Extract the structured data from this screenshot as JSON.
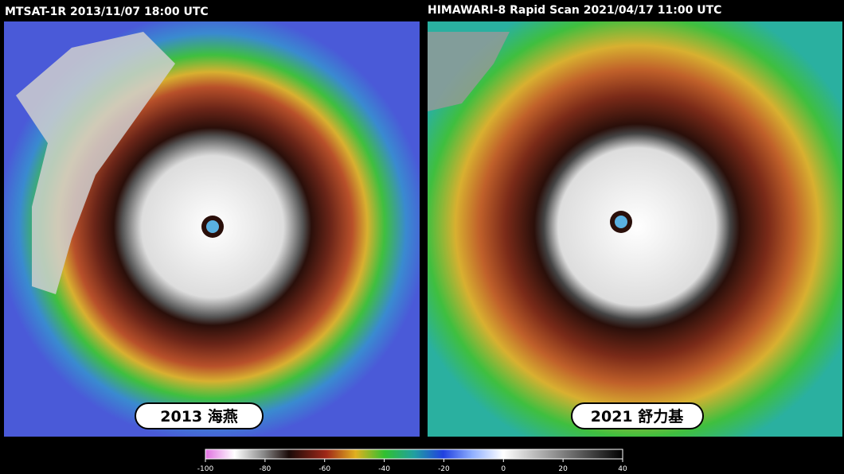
{
  "panels": [
    {
      "title": "MTSAT-1R 2013/11/07 18:00 UTC",
      "label": "2013 海燕"
    },
    {
      "title": "HIMAWARI-8 Rapid Scan 2021/04/17 11:00 UTC",
      "label": "2021 舒力基"
    }
  ],
  "colorbar": {
    "lim": [
      -100,
      40
    ],
    "ticks": [
      -100,
      -80,
      -60,
      -40,
      -20,
      0,
      20,
      40
    ]
  }
}
